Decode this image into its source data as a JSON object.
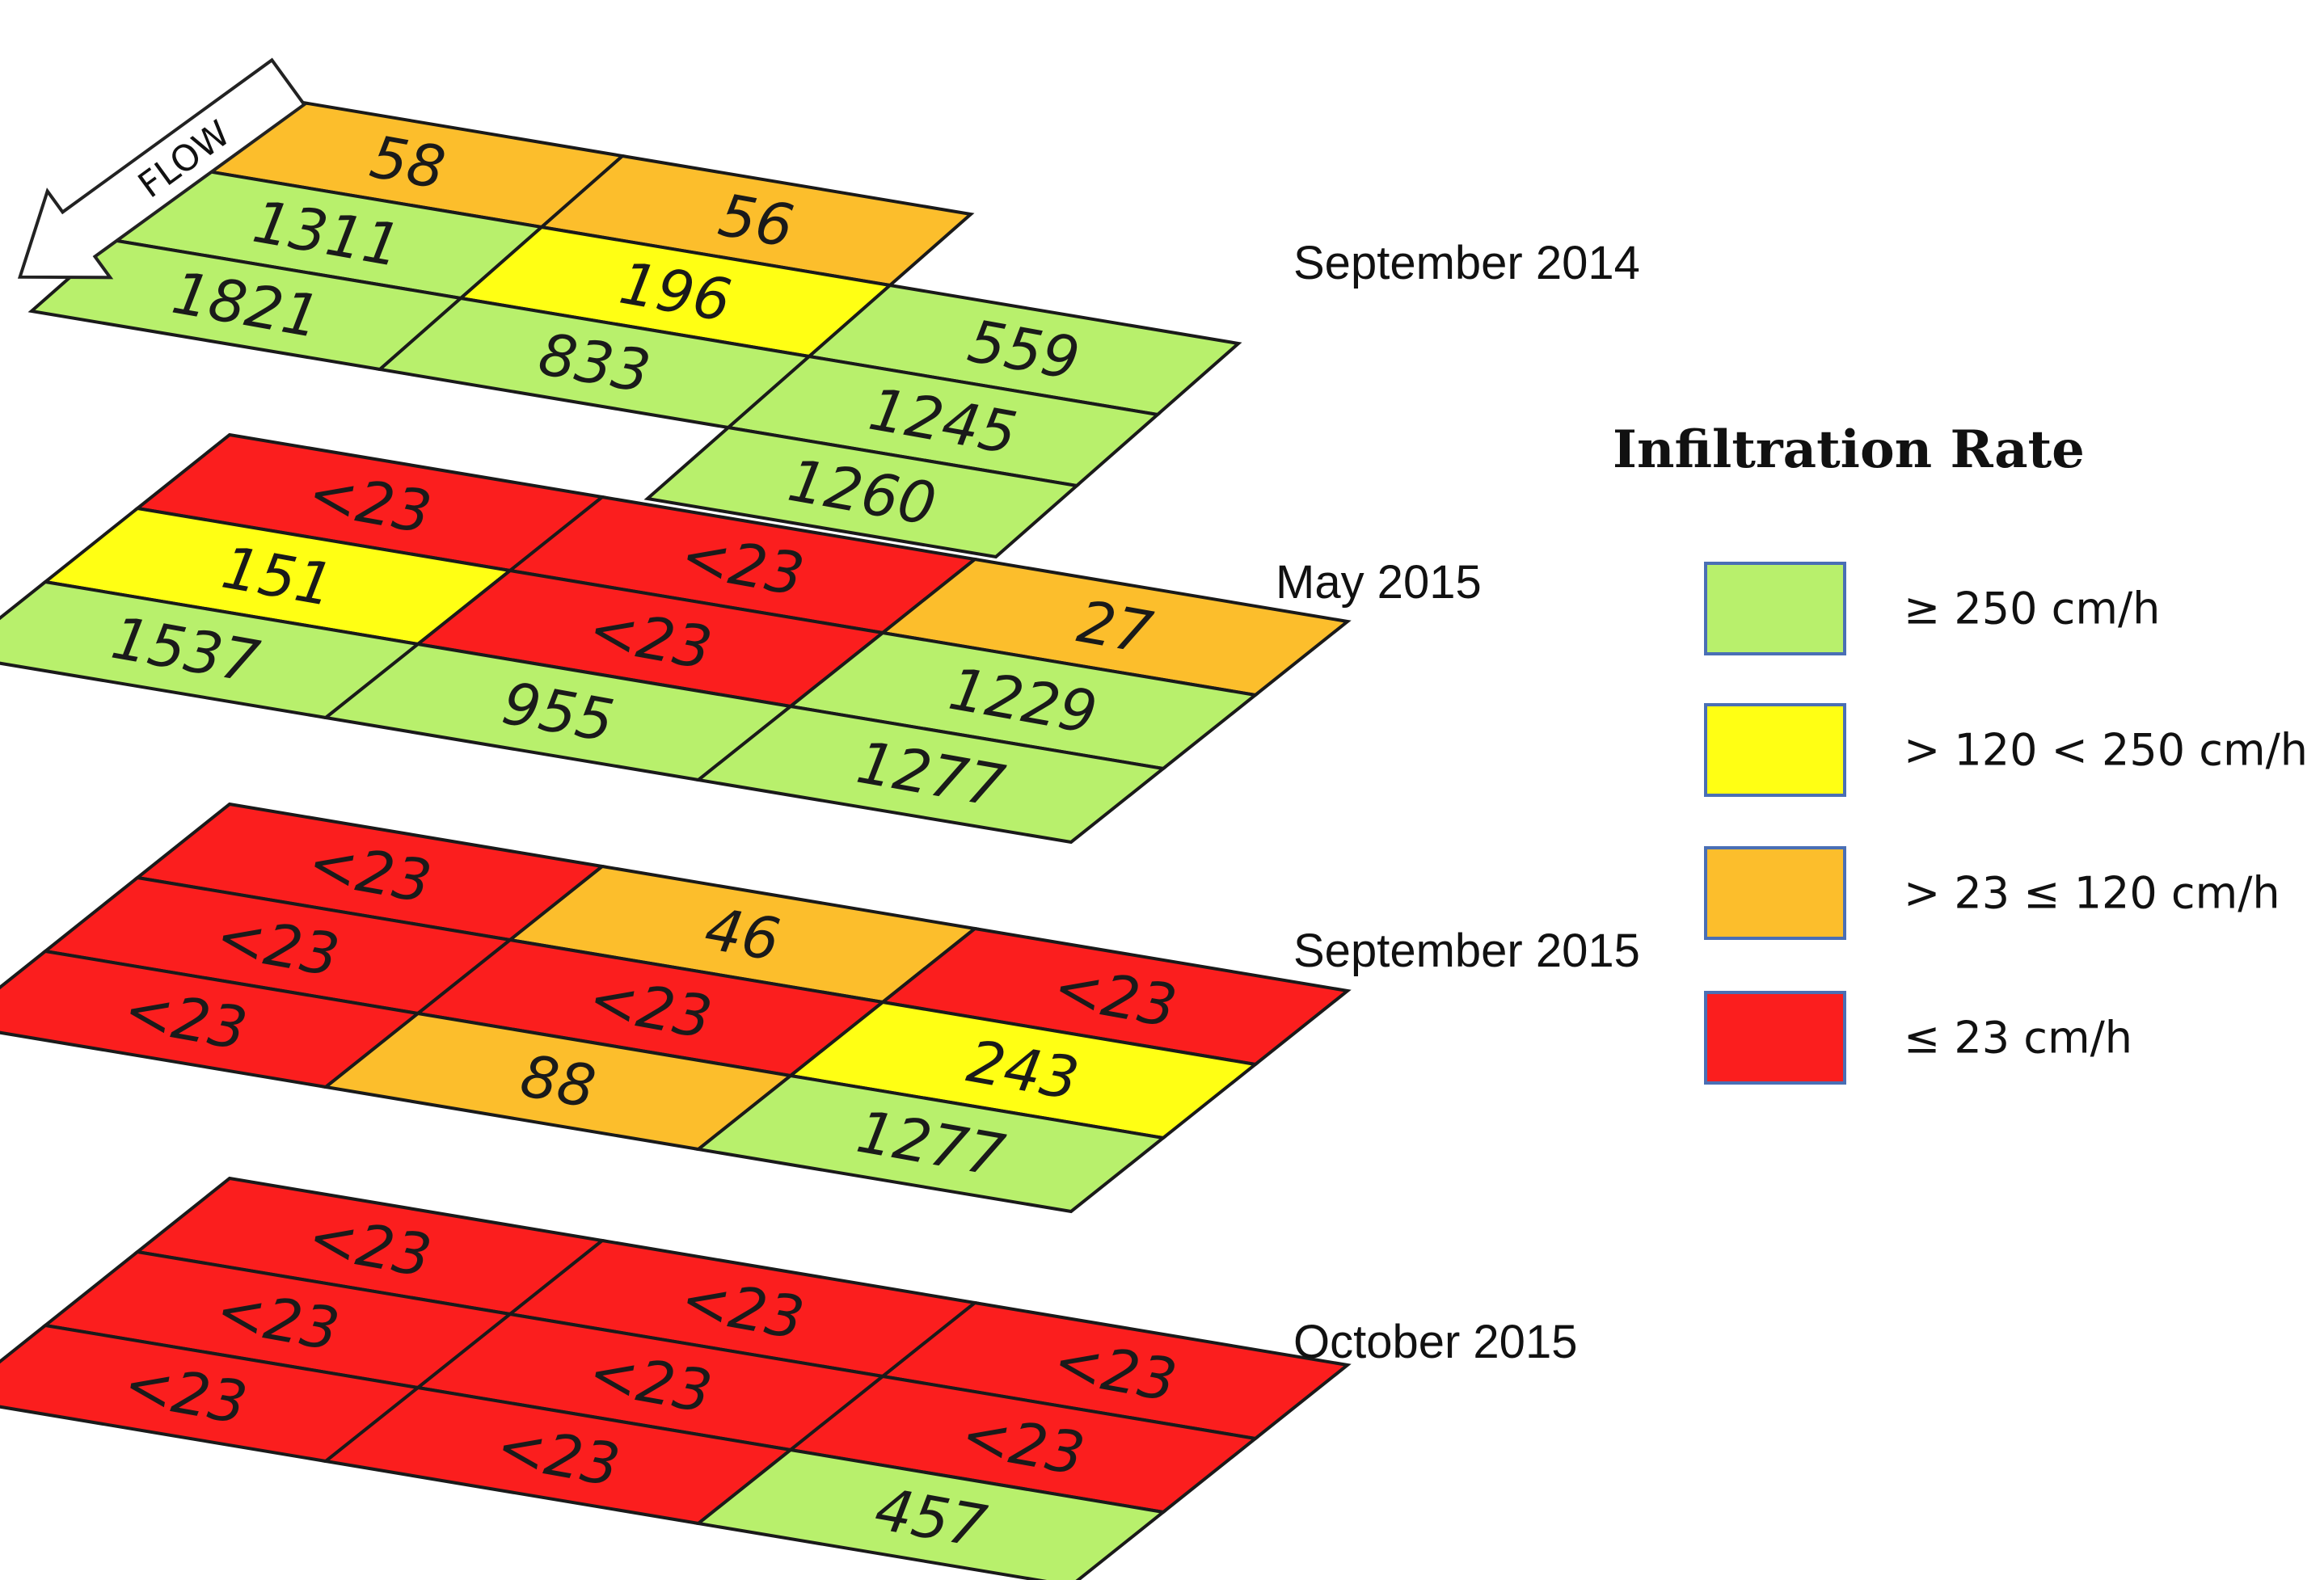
{
  "colors": {
    "green": "#b8f06c",
    "yellow": "#ffff14",
    "orange": "#fcbe2c",
    "red": "#fb1e1e",
    "grid_line": "#1a1a1a",
    "legend_border": "#4a6fb5"
  },
  "flow": {
    "label": "FLOW",
    "icon": "arrow-icon"
  },
  "panels": [
    {
      "label": "September 2014",
      "cells": [
        [
          "58",
          "56",
          ""
        ],
        [
          "1311",
          "196",
          "559"
        ],
        [
          "1821",
          "833",
          "1245"
        ],
        [
          "",
          "",
          "1260"
        ]
      ],
      "colors": [
        [
          "orange",
          "orange",
          "none"
        ],
        [
          "green",
          "yellow",
          "green"
        ],
        [
          "green",
          "green",
          "green"
        ],
        [
          "none",
          "none",
          "green"
        ]
      ]
    },
    {
      "label": "May 2015",
      "cells": [
        [
          "<23",
          "<23",
          "27"
        ],
        [
          "151",
          "<23",
          "1229"
        ],
        [
          "1537",
          "955",
          "1277"
        ]
      ],
      "colors": [
        [
          "red",
          "red",
          "orange"
        ],
        [
          "yellow",
          "red",
          "green"
        ],
        [
          "green",
          "green",
          "green"
        ]
      ]
    },
    {
      "label": "September 2015",
      "cells": [
        [
          "<23",
          "46",
          "<23"
        ],
        [
          "<23",
          "<23",
          "243"
        ],
        [
          "<23",
          "88",
          "1277"
        ]
      ],
      "colors": [
        [
          "red",
          "orange",
          "red"
        ],
        [
          "red",
          "red",
          "yellow"
        ],
        [
          "red",
          "orange",
          "green"
        ]
      ]
    },
    {
      "label": "October 2015",
      "cells": [
        [
          "<23",
          "<23",
          "<23"
        ],
        [
          "<23",
          "<23",
          "<23"
        ],
        [
          "<23",
          "<23",
          "457"
        ]
      ],
      "colors": [
        [
          "red",
          "red",
          "red"
        ],
        [
          "red",
          "red",
          "red"
        ],
        [
          "red",
          "red",
          "green"
        ]
      ]
    }
  ],
  "legend": {
    "title": "Infiltration Rate",
    "items": [
      {
        "color": "green",
        "label": "≥ 250 cm/h"
      },
      {
        "color": "yellow",
        "label": "> 120 < 250 cm/h"
      },
      {
        "color": "orange",
        "label": "> 23 ≤ 120 cm/h"
      },
      {
        "color": "red",
        "label": "≤ 23 cm/h"
      }
    ]
  }
}
